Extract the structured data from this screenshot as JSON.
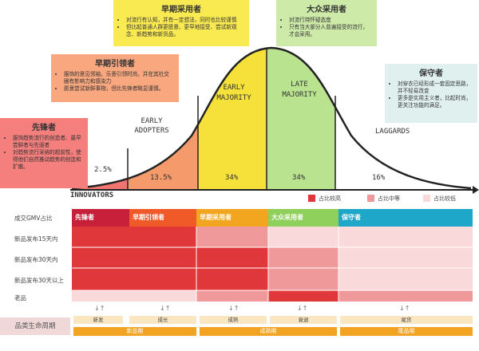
{
  "segments": [
    {
      "label": "INNOVATORS",
      "pct": "2.5%"
    },
    {
      "label": "EARLY\nADOPTERS",
      "pct": "13.5%"
    },
    {
      "label": "EARLY\nMAJORITY",
      "pct": "34%"
    },
    {
      "label": "LATE\nMAJORITY",
      "pct": "34%"
    },
    {
      "label": "LAGGARDS",
      "pct": "16%"
    }
  ],
  "boxes": {
    "innovators": {
      "title": "先锋者",
      "items": [
        "服饰趋势流行的创造者、最早尝鲜者与先驱者",
        "对趋势流行采纳的超前性，使得他们自然推动趋势的创造和扩散。"
      ]
    },
    "early_adopters": {
      "title": "早期引领者",
      "items": [
        "服饰的意见领袖，乐意引领时尚，并在其社交圈有影响力和感染力",
        "愿意尝试新鲜事物，但比先锋者略显谨慎。"
      ]
    },
    "early_majority": {
      "title": "早期采用者",
      "items": [
        "对流行有认知，并有一定想法，同时也比较谨慎",
        "但比起普通人群更愿意、更早地接受、尝试新观念、新趋势和新货品。"
      ]
    },
    "late_majority": {
      "title": "大众采用者",
      "items": [
        "对流行持怀疑态度",
        "只有当大部分人普遍接受的流行，才会采用。"
      ]
    },
    "laggards": {
      "title": "保守者",
      "items": [
        "对穿衣已经形成一套固定思路，并不轻易改变",
        "更多是实用主义者，比起时尚，更关注功能的满足。"
      ]
    }
  },
  "legend": [
    {
      "label": "占比较高",
      "color": "#e0383a"
    },
    {
      "label": "占比中等",
      "color": "#f0999a"
    },
    {
      "label": "占比较低",
      "color": "#fad9da"
    }
  ],
  "table": {
    "headers": [
      {
        "label": "先锋者",
        "color": "#c8203a"
      },
      {
        "label": "早期引领者",
        "color": "#f05a28"
      },
      {
        "label": "早期采用者",
        "color": "#f2a51f"
      },
      {
        "label": "大众采用者",
        "color": "#8fcf5c"
      },
      {
        "label": "保守者",
        "color": "#1fa7c9"
      }
    ],
    "rows": [
      {
        "label": "成交GMV占比"
      },
      {
        "label": "新品发布15天内"
      },
      {
        "label": "新品发布30天内"
      },
      {
        "label": "新品发布30天以上"
      },
      {
        "label": "老品"
      }
    ]
  },
  "lifecycle": {
    "title": "品类生命周期",
    "stages": [
      "新发",
      "成长",
      "成熟",
      "衰退",
      "尾货"
    ],
    "phases": [
      "新品期",
      "成熟期",
      "尾品期"
    ]
  }
}
